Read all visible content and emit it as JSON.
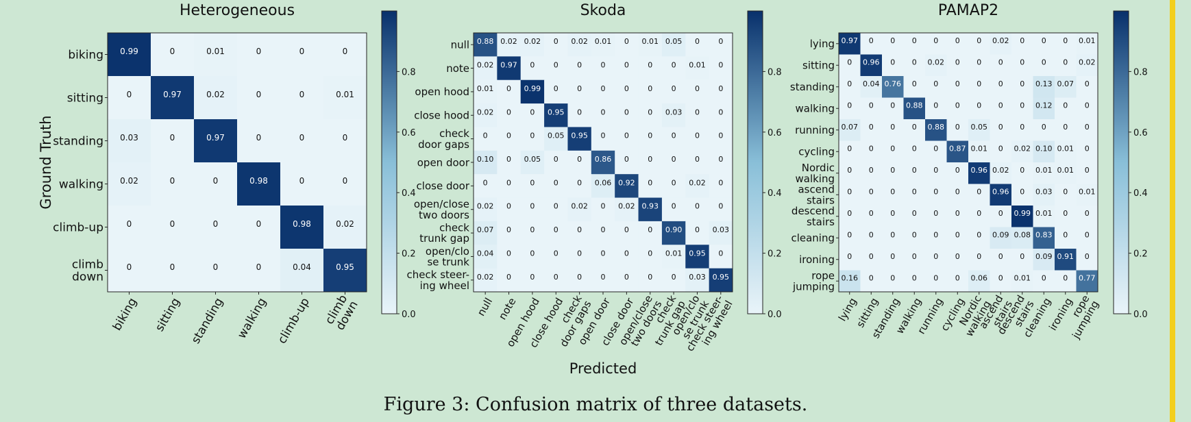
{
  "caption": "Figure 3: Confusion matrix of three datasets.",
  "accent_color": "#f3cf1c",
  "colormap": {
    "low": "#e9f4f9",
    "mid": "#89bfd8",
    "high": "#08306b"
  },
  "chart_data": [
    {
      "type": "heatmap",
      "title": "Heterogeneous",
      "ylabel": "Ground Truth",
      "xlabel": "",
      "labels": [
        "biking",
        "sitting",
        "standing",
        "walking",
        "climb-up",
        "climb\ndown"
      ],
      "values": [
        [
          0.99,
          0,
          0.01,
          0,
          0,
          0
        ],
        [
          0,
          0.97,
          0.02,
          0,
          0,
          0.01
        ],
        [
          0.03,
          0,
          0.97,
          0,
          0,
          0
        ],
        [
          0.02,
          0,
          0,
          0.98,
          0,
          0
        ],
        [
          0,
          0,
          0,
          0,
          0.98,
          0.02
        ],
        [
          0,
          0,
          0,
          0,
          0.04,
          0.95
        ]
      ],
      "colorbar": {
        "range": [
          0,
          1
        ],
        "ticks": [
          "0.0",
          "0.2",
          "0.4",
          "0.6",
          "0.8"
        ]
      }
    },
    {
      "type": "heatmap",
      "title": "Skoda",
      "ylabel": "",
      "xlabel": "Predicted",
      "labels": [
        "null",
        "note",
        "open hood",
        "close hood",
        "check\ndoor gaps",
        "open door",
        "close door",
        "open/close\ntwo doors",
        "check\ntrunk gap",
        "open/clo\nse trunk",
        "check steer-\ning wheel"
      ],
      "values": [
        [
          0.88,
          0.02,
          0.02,
          0,
          0.02,
          0.01,
          0,
          0.01,
          0.05,
          0,
          0
        ],
        [
          0.02,
          0.97,
          0,
          0,
          0,
          0,
          0,
          0,
          0,
          0.01,
          0
        ],
        [
          0.01,
          0,
          0.99,
          0,
          0,
          0,
          0,
          0,
          0,
          0,
          0
        ],
        [
          0.02,
          0,
          0,
          0.95,
          0,
          0,
          0,
          0,
          0.03,
          0,
          0
        ],
        [
          0,
          0,
          0,
          0.05,
          0.95,
          0,
          0,
          0,
          0,
          0,
          0
        ],
        [
          0.1,
          0,
          0.05,
          0,
          0,
          0.86,
          0,
          0,
          0,
          0,
          0
        ],
        [
          0,
          0,
          0,
          0,
          0,
          0.06,
          0.92,
          0,
          0,
          0.02,
          0
        ],
        [
          0.02,
          0,
          0,
          0,
          0.02,
          0,
          0.02,
          0.93,
          0,
          0,
          0
        ],
        [
          0.07,
          0,
          0,
          0,
          0,
          0,
          0,
          0,
          0.9,
          0,
          0.03
        ],
        [
          0.04,
          0,
          0,
          0,
          0,
          0,
          0,
          0,
          0.01,
          0.95,
          0
        ],
        [
          0.02,
          0,
          0,
          0,
          0,
          0,
          0,
          0,
          0,
          0.03,
          0.95
        ]
      ],
      "colorbar": {
        "range": [
          0,
          1
        ],
        "ticks": [
          "0.0",
          "0.2",
          "0.4",
          "0.6",
          "0.8"
        ]
      }
    },
    {
      "type": "heatmap",
      "title": "PAMAP2",
      "ylabel": "",
      "xlabel": "",
      "labels": [
        "lying",
        "sitting",
        "standing",
        "walking",
        "running",
        "cycling",
        "Nordic\nwalking",
        "ascend\nstairs",
        "descend\nstairs",
        "cleaning",
        "ironing",
        "rope\njumping"
      ],
      "values": [
        [
          0.97,
          0,
          0,
          0,
          0,
          0,
          0,
          0.02,
          0,
          0,
          0,
          0.01
        ],
        [
          0,
          0.96,
          0,
          0,
          0.02,
          0,
          0,
          0,
          0,
          0,
          0,
          0.02
        ],
        [
          0,
          0.04,
          0.76,
          0,
          0,
          0,
          0,
          0,
          0,
          0.13,
          0.07,
          0
        ],
        [
          0,
          0,
          0,
          0.88,
          0,
          0,
          0,
          0,
          0,
          0.12,
          0,
          0
        ],
        [
          0.07,
          0,
          0,
          0,
          0.88,
          0,
          0.05,
          0,
          0,
          0,
          0,
          0
        ],
        [
          0,
          0,
          0,
          0,
          0,
          0.87,
          0.01,
          0,
          0.02,
          0.1,
          0.01,
          0
        ],
        [
          0,
          0,
          0,
          0,
          0,
          0,
          0.96,
          0.02,
          0,
          0.01,
          0.01,
          0
        ],
        [
          0,
          0,
          0,
          0,
          0,
          0,
          0,
          0.96,
          0,
          0.03,
          0,
          0.01
        ],
        [
          0,
          0,
          0,
          0,
          0,
          0,
          0,
          0,
          0.99,
          0.01,
          0,
          0
        ],
        [
          0,
          0,
          0,
          0,
          0,
          0,
          0,
          0.09,
          0.08,
          0.83,
          0,
          0
        ],
        [
          0,
          0,
          0,
          0,
          0,
          0,
          0,
          0,
          0,
          0.09,
          0.91,
          0
        ],
        [
          0.16,
          0,
          0,
          0,
          0,
          0,
          0.06,
          0,
          0.01,
          0,
          0,
          0.77
        ]
      ],
      "colorbar": {
        "range": [
          0,
          1
        ],
        "ticks": [
          "0.0",
          "0.2",
          "0.4",
          "0.6",
          "0.8"
        ]
      }
    }
  ]
}
